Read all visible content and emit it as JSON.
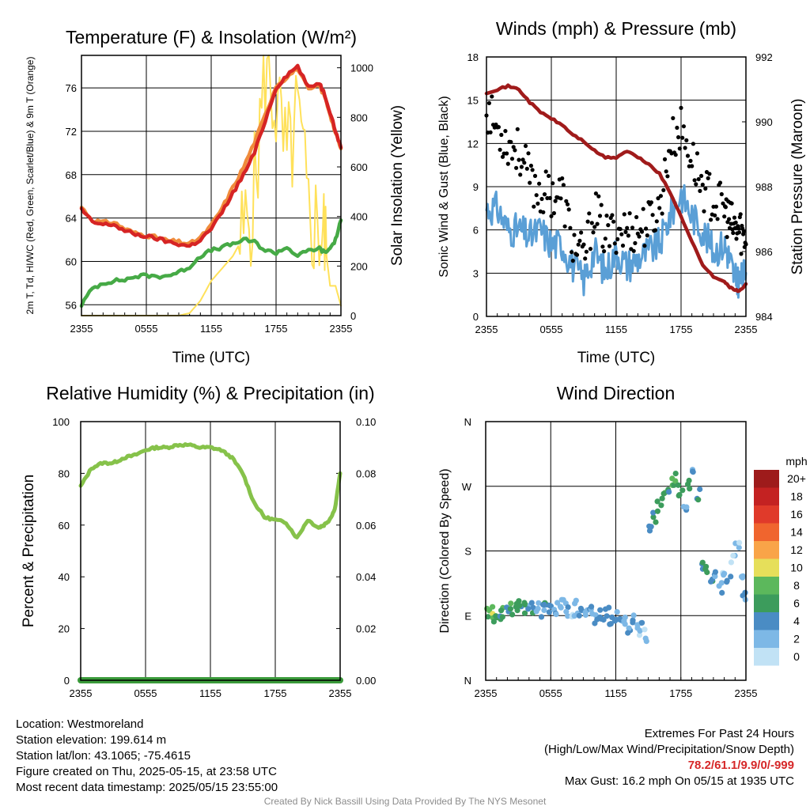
{
  "colors": {
    "temp": "#d62424",
    "wind_chill": "#e0301e",
    "temp9m": "#f08c3c",
    "dewpoint": "#46aa46",
    "insolation": "#ffe15a",
    "wind": "#5a9fd6",
    "gust": "#000000",
    "pressure": "#a01b1b",
    "rh": "#86c24a",
    "precip": "#3a9a3a"
  },
  "chart_data": [
    {
      "id": "temp",
      "type": "line",
      "title": "Temperature (F) & Insolation (W/m²)",
      "xlabel": "Time (UTC)",
      "ylabel": "2m T, Td, HI/WC (Red, Green, Scarlet/Blue) & 9m T (Orange)",
      "y2label": "Solar Insolation (Yellow)",
      "x_ticks": [
        "2355",
        "0555",
        "1155",
        "1755",
        "2355"
      ],
      "ylim": [
        55,
        79
      ],
      "y_ticks": [
        56,
        60,
        64,
        68,
        72,
        76
      ],
      "y2lim": [
        0,
        1050
      ],
      "y2_ticks": [
        0,
        200,
        400,
        600,
        800,
        1000
      ],
      "x_hours": [
        0,
        1,
        2,
        3,
        4,
        5,
        6,
        7,
        8,
        9,
        10,
        11,
        12,
        13,
        14,
        15,
        16,
        17,
        18,
        19,
        20,
        21,
        22,
        22.5,
        23,
        23.5,
        24
      ],
      "series": [
        {
          "key": "temp",
          "axis": "y",
          "values": [
            64.8,
            63.6,
            63.4,
            63.4,
            62.8,
            62.5,
            62.3,
            62.1,
            61.8,
            61.6,
            61.4,
            62.0,
            63.0,
            64.5,
            66.3,
            68.0,
            70.0,
            73.0,
            76.0,
            77.2,
            78.0,
            76.0,
            76.5,
            75.4,
            73.8,
            72.0,
            70.5
          ]
        },
        {
          "key": "temp9m",
          "axis": "y",
          "values": [
            65.0,
            63.8,
            63.6,
            63.6,
            63.0,
            62.6,
            62.4,
            62.2,
            61.9,
            61.8,
            61.6,
            62.2,
            63.3,
            64.9,
            66.8,
            68.7,
            71.0,
            73.5,
            76.2,
            77.0,
            77.8,
            75.8,
            76.2,
            75.2,
            73.6,
            71.8,
            70.4
          ]
        },
        {
          "key": "dewpoint",
          "axis": "y",
          "values": [
            56.0,
            57.5,
            58.0,
            58.2,
            58.3,
            58.6,
            58.7,
            58.6,
            58.7,
            59.0,
            59.5,
            60.5,
            61.0,
            61.3,
            61.6,
            62.0,
            61.8,
            61.0,
            60.8,
            61.3,
            60.5,
            61.0,
            61.2,
            60.8,
            61.2,
            62.0,
            63.8
          ]
        },
        {
          "key": "insolation",
          "axis": "y2",
          "values": [
            0,
            0,
            0,
            0,
            0,
            0,
            0,
            0,
            0,
            0,
            10,
            60,
            140,
            190,
            240,
            320,
            500,
            1000,
            850,
            600,
            800,
            400,
            350,
            300,
            120,
            120,
            40
          ]
        }
      ]
    },
    {
      "id": "wind",
      "type": "line",
      "title": "Winds (mph) & Pressure (mb)",
      "xlabel": "Time (UTC)",
      "ylabel": "Sonic Wind & Gust (Blue, Black)",
      "y2label": "Station Pressure (Maroon)",
      "x_ticks": [
        "2355",
        "0555",
        "1155",
        "1755",
        "2355"
      ],
      "ylim": [
        0,
        18
      ],
      "y_ticks": [
        0,
        3,
        6,
        9,
        12,
        15,
        18
      ],
      "y2lim": [
        984,
        992
      ],
      "y2_ticks": [
        984,
        986,
        988,
        990,
        992
      ],
      "x_hours": [
        0,
        1,
        2,
        3,
        4,
        5,
        6,
        7,
        8,
        9,
        10,
        11,
        12,
        13,
        14,
        15,
        16,
        17,
        18,
        19,
        20,
        21,
        22,
        22.5,
        23,
        23.5,
        24
      ],
      "series": [
        {
          "key": "wind",
          "axis": "y",
          "values": [
            7.5,
            7.5,
            6.0,
            6.0,
            5.5,
            6.0,
            5.0,
            5.0,
            3.5,
            2.5,
            4.5,
            3.0,
            4.5,
            3.5,
            4.0,
            4.5,
            5.0,
            7.0,
            8.5,
            7.0,
            6.0,
            4.5,
            5.0,
            4.0,
            2.5,
            2.5,
            3.0
          ]
        },
        {
          "key": "gust",
          "axis": "y",
          "values": [
            14.5,
            13.0,
            12.0,
            11.5,
            9.5,
            8.5,
            8.5,
            8.5,
            5.0,
            4.0,
            7.5,
            5.5,
            6.0,
            6.0,
            6.0,
            6.5,
            7.5,
            12.0,
            13.0,
            11.0,
            9.0,
            8.0,
            7.5,
            6.5,
            6.0,
            6.0,
            5.0
          ]
        },
        {
          "key": "pressure",
          "axis": "y2",
          "values": [
            990.9,
            991.0,
            991.1,
            991.0,
            990.6,
            990.3,
            990.1,
            989.9,
            989.6,
            989.4,
            989.1,
            988.9,
            988.9,
            989.1,
            988.9,
            988.7,
            988.4,
            987.8,
            987.1,
            986.3,
            985.6,
            985.2,
            985.1,
            984.9,
            984.8,
            984.8,
            985.0
          ]
        }
      ]
    },
    {
      "id": "rh",
      "type": "line",
      "title": "Relative Humidity (%) & Precipitation (in)",
      "xlabel": "",
      "ylabel": "Percent & Precipitation",
      "x_ticks": [
        "2355",
        "0555",
        "1155",
        "1755",
        "2355"
      ],
      "ylim": [
        0,
        100
      ],
      "y_ticks": [
        0,
        20,
        40,
        60,
        80,
        100
      ],
      "y2lim": [
        0,
        0.1
      ],
      "y2_ticks": [
        "0.00",
        "0.02",
        "0.04",
        "0.06",
        "0.08",
        "0.10"
      ],
      "x_hours": [
        0,
        1,
        2,
        3,
        4,
        5,
        6,
        7,
        8,
        9,
        10,
        11,
        12,
        13,
        14,
        15,
        16,
        17,
        18,
        19,
        20,
        21,
        22,
        22.5,
        23,
        23.5,
        24
      ],
      "series": [
        {
          "key": "rh",
          "axis": "y",
          "values": [
            75,
            82,
            84,
            84,
            86,
            87,
            89,
            90,
            90,
            91,
            91,
            90,
            90,
            89,
            86,
            80,
            69,
            63,
            62,
            61,
            55,
            62,
            59,
            60,
            62,
            66,
            80
          ]
        },
        {
          "key": "precip",
          "axis": "y2",
          "values": [
            0,
            0,
            0,
            0,
            0,
            0,
            0,
            0,
            0,
            0,
            0,
            0,
            0,
            0,
            0,
            0,
            0,
            0,
            0,
            0,
            0,
            0,
            0,
            0,
            0,
            0,
            0
          ]
        }
      ]
    },
    {
      "id": "wdir",
      "type": "scatter",
      "title": "Wind Direction",
      "xlabel": "",
      "ylabel": "Direction (Colored By Speed)",
      "x_ticks": [
        "2355",
        "0555",
        "1155",
        "1755",
        "2355"
      ],
      "y_ticks": [
        "N",
        "E",
        "S",
        "W",
        "N"
      ],
      "ylim": [
        0,
        360
      ],
      "legend": {
        "title": "mph",
        "labels": [
          "20+",
          "18",
          "16",
          "14",
          "12",
          "10",
          "8",
          "6",
          "4",
          "2",
          "0"
        ],
        "colors": [
          "#9e1b1b",
          "#c42222",
          "#e03a2a",
          "#f0652e",
          "#f9a448",
          "#e6df5a",
          "#5cb85c",
          "#3c9c5c",
          "#4a8cc4",
          "#7db8e6",
          "#c1e2f5"
        ]
      },
      "points": [
        {
          "h": 0.2,
          "deg": 92,
          "spd": 7
        },
        {
          "h": 0.5,
          "deg": 95,
          "spd": 10
        },
        {
          "h": 0.8,
          "deg": 90,
          "spd": 7
        },
        {
          "h": 1.2,
          "deg": 93,
          "spd": 6
        },
        {
          "h": 1.6,
          "deg": 96,
          "spd": 7
        },
        {
          "h": 2.0,
          "deg": 94,
          "spd": 5
        },
        {
          "h": 2.4,
          "deg": 98,
          "spd": 7
        },
        {
          "h": 2.8,
          "deg": 101,
          "spd": 6
        },
        {
          "h": 3.2,
          "deg": 104,
          "spd": 5
        },
        {
          "h": 3.6,
          "deg": 100,
          "spd": 6
        },
        {
          "h": 4.0,
          "deg": 102,
          "spd": 4
        },
        {
          "h": 4.4,
          "deg": 99,
          "spd": 5
        },
        {
          "h": 4.8,
          "deg": 103,
          "spd": 3
        },
        {
          "h": 5.2,
          "deg": 97,
          "spd": 4
        },
        {
          "h": 5.6,
          "deg": 100,
          "spd": 5
        },
        {
          "h": 6.0,
          "deg": 98,
          "spd": 4
        },
        {
          "h": 6.4,
          "deg": 94,
          "spd": 3
        },
        {
          "h": 6.8,
          "deg": 100,
          "spd": 2
        },
        {
          "h": 7.2,
          "deg": 105,
          "spd": 2
        },
        {
          "h": 7.6,
          "deg": 98,
          "spd": 3
        },
        {
          "h": 8.0,
          "deg": 93,
          "spd": 2
        },
        {
          "h": 8.4,
          "deg": 102,
          "spd": 3
        },
        {
          "h": 8.8,
          "deg": 97,
          "spd": 4
        },
        {
          "h": 9.2,
          "deg": 90,
          "spd": 3
        },
        {
          "h": 9.6,
          "deg": 95,
          "spd": 4
        },
        {
          "h": 10.0,
          "deg": 88,
          "spd": 3
        },
        {
          "h": 10.4,
          "deg": 92,
          "spd": 4
        },
        {
          "h": 10.8,
          "deg": 86,
          "spd": 3
        },
        {
          "h": 11.2,
          "deg": 95,
          "spd": 4
        },
        {
          "h": 11.6,
          "deg": 84,
          "spd": 4
        },
        {
          "h": 12.0,
          "deg": 90,
          "spd": 4
        },
        {
          "h": 12.4,
          "deg": 78,
          "spd": 4
        },
        {
          "h": 12.8,
          "deg": 85,
          "spd": 3
        },
        {
          "h": 13.2,
          "deg": 74,
          "spd": 4
        },
        {
          "h": 13.6,
          "deg": 82,
          "spd": 4
        },
        {
          "h": 14.0,
          "deg": 70,
          "spd": 2
        },
        {
          "h": 14.4,
          "deg": 76,
          "spd": 3
        },
        {
          "h": 14.8,
          "deg": 62,
          "spd": 2
        },
        {
          "h": 15.2,
          "deg": 210,
          "spd": 4
        },
        {
          "h": 15.6,
          "deg": 225,
          "spd": 6
        },
        {
          "h": 16.0,
          "deg": 240,
          "spd": 7
        },
        {
          "h": 16.4,
          "deg": 255,
          "spd": 7
        },
        {
          "h": 16.8,
          "deg": 262,
          "spd": 6
        },
        {
          "h": 17.2,
          "deg": 272,
          "spd": 8
        },
        {
          "h": 17.6,
          "deg": 280,
          "spd": 7
        },
        {
          "h": 18.0,
          "deg": 265,
          "spd": 6
        },
        {
          "h": 18.4,
          "deg": 245,
          "spd": 4
        },
        {
          "h": 18.8,
          "deg": 275,
          "spd": 6
        },
        {
          "h": 19.2,
          "deg": 290,
          "spd": 4
        },
        {
          "h": 19.6,
          "deg": 258,
          "spd": 6
        },
        {
          "h": 20.0,
          "deg": 160,
          "spd": 5
        },
        {
          "h": 20.4,
          "deg": 150,
          "spd": 6
        },
        {
          "h": 20.8,
          "deg": 135,
          "spd": 5
        },
        {
          "h": 21.2,
          "deg": 145,
          "spd": 4
        },
        {
          "h": 21.6,
          "deg": 130,
          "spd": 3
        },
        {
          "h": 22.0,
          "deg": 155,
          "spd": 2
        },
        {
          "h": 22.4,
          "deg": 140,
          "spd": 4
        },
        {
          "h": 22.8,
          "deg": 170,
          "spd": 2
        },
        {
          "h": 23.2,
          "deg": 190,
          "spd": 2
        },
        {
          "h": 23.6,
          "deg": 150,
          "spd": 2
        },
        {
          "h": 23.9,
          "deg": 115,
          "spd": 4
        }
      ]
    }
  ],
  "info": {
    "location": "Location: Westmoreland",
    "elevation": "Station elevation: 199.614 m",
    "latlon": "Station lat/lon: 43.1065; -75.4615",
    "created": "Figure created on Thu, 2025-05-15, at 23:58 UTC",
    "recent": "Most recent data timestamp: 2025/05/15 23:55:00"
  },
  "extremes": {
    "title": "Extremes For Past 24 Hours",
    "subtitle": "(High/Low/Max Wind/Precipitation/Snow Depth)",
    "values": "78.2/61.1/9.9/0/-999",
    "max_gust": "Max Gust: 16.2 mph On 05/15 at 1935 UTC"
  },
  "credit": "Created By Nick Bassill Using Data Provided By The NYS Mesonet"
}
